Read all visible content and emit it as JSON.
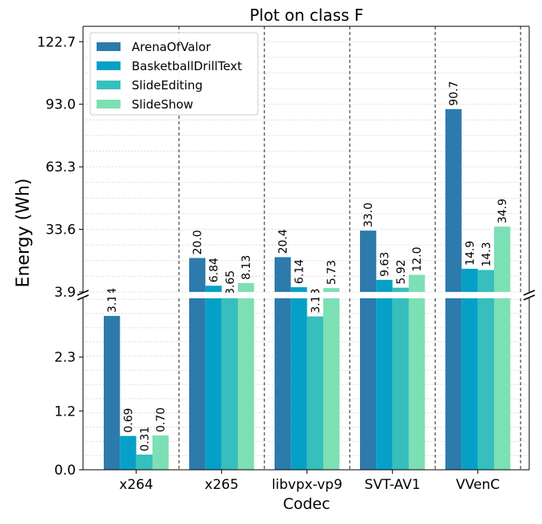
{
  "chart_data": {
    "type": "bar",
    "title": "Plot on class F",
    "xlabel": "Codec",
    "ylabel": "Energy (Wh)",
    "categories": [
      "x264",
      "x265",
      "libvpx-vp9",
      "SVT-AV1",
      "VVenC"
    ],
    "series": [
      {
        "name": "ArenaOfValor",
        "color": "#2c7bac",
        "values": [
          3.14,
          20.0,
          20.4,
          33.0,
          90.7
        ],
        "labels": [
          "3.14",
          "20.0",
          "20.4",
          "33.0",
          "90.7"
        ]
      },
      {
        "name": "BasketballDrillText",
        "color": "#06a0c7",
        "values": [
          0.69,
          6.84,
          6.14,
          9.63,
          14.9
        ],
        "labels": [
          "0.69",
          "6.84",
          "6.14",
          "9.63",
          "14.9"
        ]
      },
      {
        "name": "SlideEditing",
        "color": "#36bfbc",
        "values": [
          0.31,
          3.65,
          3.13,
          5.92,
          14.3
        ],
        "labels": [
          "0.31",
          "3.65",
          "3.13",
          "5.92",
          "14.3"
        ]
      },
      {
        "name": "SlideShow",
        "color": "#7ddfb4",
        "values": [
          0.7,
          8.13,
          5.73,
          12.0,
          34.9
        ],
        "labels": [
          "0.70",
          "8.13",
          "5.73",
          "12.0",
          "34.9"
        ]
      }
    ],
    "broken_axis": {
      "upper": {
        "ylim": [
          3.9,
          130
        ],
        "ticks": [
          "3.9",
          "33.6",
          "63.3",
          "93.0",
          "122.7"
        ]
      },
      "lower": {
        "ylim": [
          0,
          3.5
        ],
        "ticks": [
          "0.0",
          "1.2",
          "2.3"
        ]
      }
    },
    "grid": true,
    "legend_position": "top-left"
  }
}
